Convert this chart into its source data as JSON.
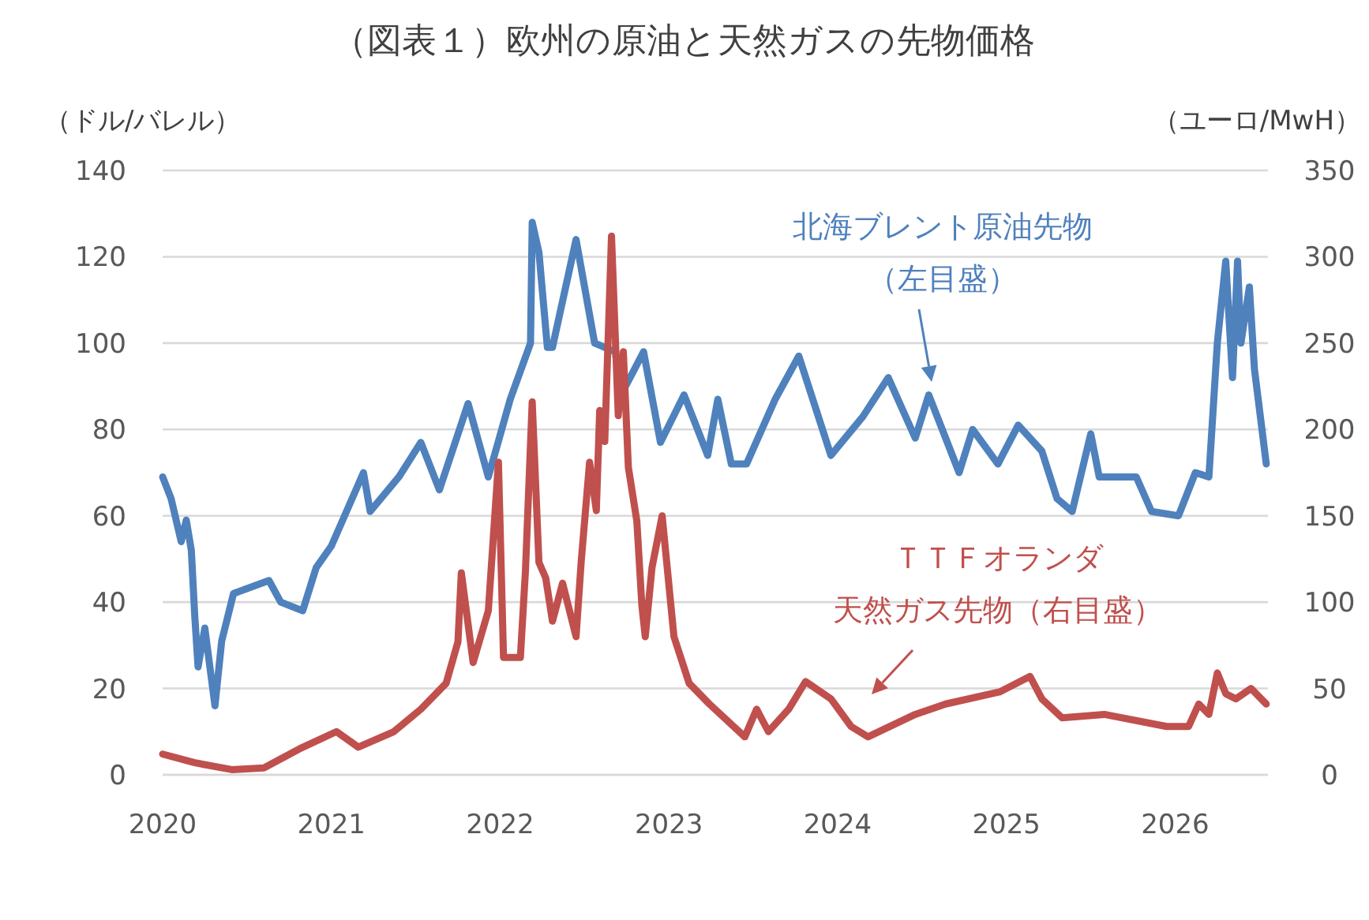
{
  "chart_data": {
    "type": "line",
    "title": "（図表１）欧州の原油と天然ガスの先物価格",
    "ylabel": "（ドル/バレル）",
    "y2label": "（ユーロ/MwH）",
    "xlim": [
      2020,
      2026.55
    ],
    "xticks": [
      2020,
      2021,
      2022,
      2023,
      2024,
      2025,
      2026
    ],
    "ylim": [
      0,
      140
    ],
    "yticks": [
      0,
      20,
      40,
      60,
      80,
      100,
      120,
      140
    ],
    "y2lim": [
      0,
      350
    ],
    "y2ticks": [
      0,
      50,
      100,
      150,
      200,
      250,
      300,
      350
    ],
    "grid": "y",
    "legend": false,
    "series": [
      {
        "name": "北海ブレント原油先物（左目盛）",
        "color": "#4f81bd",
        "x": [
          2020.0,
          2020.05,
          2020.11,
          2020.14,
          2020.17,
          2020.19,
          2020.21,
          2020.25,
          2020.31,
          2020.35,
          2020.42,
          2020.63,
          2020.7,
          2020.83,
          2020.91,
          2021.0,
          2021.19,
          2021.23,
          2021.4,
          2021.53,
          2021.64,
          2021.81,
          2021.93,
          2022.06,
          2022.18,
          2022.19,
          2022.23,
          2022.28,
          2022.31,
          2022.45,
          2022.56,
          2022.68,
          2022.73,
          2022.85,
          2022.95,
          2023.09,
          2023.23,
          2023.29,
          2023.37,
          2023.46,
          2023.63,
          2023.77,
          2023.96,
          2024.15,
          2024.3,
          2024.46,
          2024.54,
          2024.72,
          2024.8,
          2024.95,
          2025.07,
          2025.21,
          2025.3,
          2025.39,
          2025.5,
          2025.55,
          2025.77,
          2025.86,
          2026.02,
          2026.12,
          2026.2,
          2026.25,
          2026.3,
          2026.34,
          2026.37,
          2026.39,
          2026.44,
          2026.47,
          2026.54
        ],
        "values": [
          69,
          64,
          54,
          59,
          52,
          37,
          25,
          34,
          16,
          31,
          42,
          45,
          40,
          38,
          48,
          53,
          70,
          61,
          69,
          77,
          66,
          86,
          69,
          87,
          100,
          128,
          121,
          99,
          99,
          124,
          100,
          98,
          89,
          98,
          77,
          88,
          74,
          87,
          72,
          72,
          87,
          97,
          74,
          83,
          92,
          78,
          88,
          70,
          80,
          72,
          81,
          75,
          64,
          61,
          79,
          69,
          69,
          61,
          60,
          70,
          69,
          100,
          119,
          92,
          119,
          100,
          113,
          94,
          72
        ]
      },
      {
        "name": "ＴＴＦオランダ天然ガス先物（右目盛）",
        "color": "#c0504d",
        "axis": "y2",
        "x": [
          2020.0,
          2020.19,
          2020.41,
          2020.6,
          2020.81,
          2021.03,
          2021.16,
          2021.37,
          2021.53,
          2021.68,
          2021.75,
          2021.77,
          2021.84,
          2021.93,
          2021.99,
          2022.02,
          2022.12,
          2022.15,
          2022.19,
          2022.23,
          2022.27,
          2022.31,
          2022.37,
          2022.45,
          2022.48,
          2022.53,
          2022.57,
          2022.59,
          2022.62,
          2022.66,
          2022.7,
          2022.73,
          2022.76,
          2022.81,
          2022.84,
          2022.86,
          2022.9,
          2022.96,
          2023.03,
          2023.12,
          2023.24,
          2023.45,
          2023.52,
          2023.59,
          2023.71,
          2023.81,
          2023.96,
          2024.08,
          2024.18,
          2024.46,
          2024.64,
          2024.96,
          2025.14,
          2025.21,
          2025.33,
          2025.58,
          2025.95,
          2026.08,
          2026.14,
          2026.2,
          2026.25,
          2026.3,
          2026.36,
          2026.45,
          2026.54
        ],
        "values": [
          12,
          7,
          3,
          4,
          15,
          25,
          16,
          25,
          38,
          53,
          77,
          117,
          65,
          95,
          181,
          68,
          68,
          118,
          216,
          123,
          114,
          89,
          111,
          80,
          123,
          181,
          153,
          211,
          193,
          312,
          208,
          245,
          178,
          147,
          98,
          80,
          120,
          150,
          80,
          53,
          41,
          22,
          38,
          25,
          38,
          54,
          44,
          28,
          22,
          35,
          41,
          48,
          57,
          44,
          33,
          35,
          28,
          28,
          41,
          35,
          59,
          47,
          44,
          50,
          41
        ]
      }
    ]
  }
}
